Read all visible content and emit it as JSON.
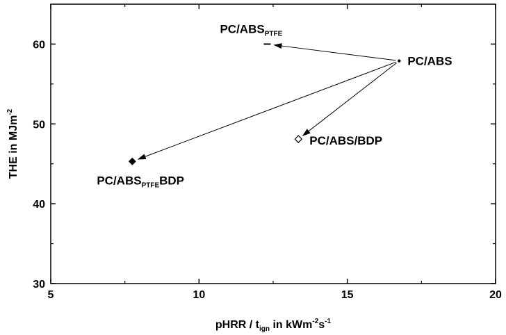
{
  "chart_data": {
    "type": "scatter",
    "xlabel": {
      "main": "pHRR / t",
      "sub": "ign",
      "rest": " in kWm",
      "sup1": "-2",
      "mid": "s",
      "sup2": "-1"
    },
    "ylabel": {
      "main": "THE in MJm",
      "sup": "-2"
    },
    "xlim": [
      5,
      20
    ],
    "ylim": [
      30,
      65
    ],
    "xticks": [
      5,
      10,
      15,
      20
    ],
    "yticks": [
      30,
      40,
      50,
      60
    ],
    "grid": false,
    "points": [
      {
        "id": "pc-abs",
        "label": "PC/ABS",
        "x": 16.75,
        "y": 57.9,
        "marker": "dot"
      },
      {
        "id": "pc-abs-ptfe",
        "label": "PC/ABS",
        "label_sub": "PTFE",
        "x": 12.3,
        "y": 60.0,
        "marker": "dash"
      },
      {
        "id": "pc-abs-bdp",
        "label": "PC/ABS/BDP",
        "x": 13.35,
        "y": 48.1,
        "marker": "open-diamond"
      },
      {
        "id": "pc-abs-ptfe-bdp",
        "label": "PC/ABS",
        "label_sub": "PTFE",
        "label_rest": "BDP",
        "x": 7.75,
        "y": 45.3,
        "marker": "filled-diamond"
      }
    ],
    "arrows": [
      {
        "from": "pc-abs",
        "to": "pc-abs-ptfe"
      },
      {
        "from": "pc-abs",
        "to": "pc-abs-bdp"
      },
      {
        "from": "pc-abs",
        "to": "pc-abs-ptfe-bdp"
      }
    ]
  }
}
